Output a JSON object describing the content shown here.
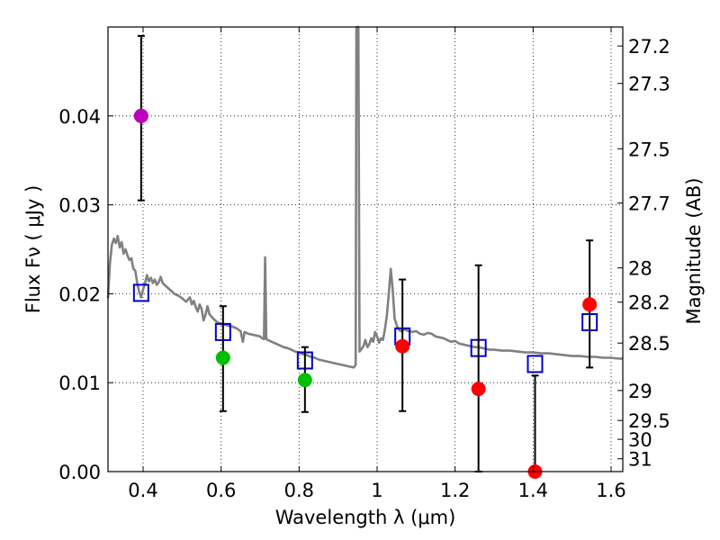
{
  "chart_data": {
    "type": "scatter",
    "xlabel": "Wavelength  λ (μm)",
    "ylabel": "Flux  Fν  ( μJy )",
    "y2label": "Magnitude (AB)",
    "xlim": [
      0.31,
      1.63
    ],
    "ylim": [
      0.0,
      0.05
    ],
    "grid": true,
    "x_ticks": [
      0.4,
      0.6,
      0.8,
      1.0,
      1.2,
      1.4,
      1.6
    ],
    "x_tick_labels": [
      "0.4",
      "0.6",
      "0.8",
      "1",
      "1.2",
      "1.4",
      "1.6"
    ],
    "y_ticks": [
      0.0,
      0.01,
      0.02,
      0.03,
      0.04
    ],
    "y_tick_labels": [
      "0.00",
      "0.01",
      "0.02",
      "0.03",
      "0.04"
    ],
    "magnitude_ticks": [
      "27.2",
      "27.3",
      "27.5",
      "27.7",
      "28",
      "28.2",
      "28.5",
      "29",
      "29.5",
      "30",
      "31"
    ],
    "observed": [
      {
        "x": 0.395,
        "y": 0.04,
        "err_low": 0.0305,
        "err_high": 0.049,
        "color": "#bf00bf"
      },
      {
        "x": 0.605,
        "y": 0.0128,
        "err_low": 0.0068,
        "err_high": 0.0186,
        "color": "#00bf00"
      },
      {
        "x": 0.815,
        "y": 0.0103,
        "err_low": 0.0067,
        "err_high": 0.014,
        "color": "#00bf00"
      },
      {
        "x": 1.065,
        "y": 0.0141,
        "err_low": 0.0068,
        "err_high": 0.0216,
        "color": "#ff0000"
      },
      {
        "x": 1.26,
        "y": 0.0093,
        "err_low": 0.0,
        "err_high": 0.0232,
        "color": "#ff0000"
      },
      {
        "x": 1.405,
        "y": 0.0,
        "err_low": 0.0,
        "err_high": 0.0108,
        "color": "#ff0000"
      },
      {
        "x": 1.545,
        "y": 0.0188,
        "err_low": 0.0117,
        "err_high": 0.026,
        "color": "#ff0000"
      }
    ],
    "model_bands": [
      {
        "x": 0.395,
        "y": 0.0201
      },
      {
        "x": 0.605,
        "y": 0.0157
      },
      {
        "x": 0.815,
        "y": 0.0125
      },
      {
        "x": 1.065,
        "y": 0.0152
      },
      {
        "x": 1.26,
        "y": 0.0139
      },
      {
        "x": 1.405,
        "y": 0.0121
      },
      {
        "x": 1.545,
        "y": 0.0168
      }
    ],
    "model_sed": [
      [
        0.31,
        0.0195
      ],
      [
        0.315,
        0.0235
      ],
      [
        0.32,
        0.0255
      ],
      [
        0.325,
        0.0262
      ],
      [
        0.33,
        0.0257
      ],
      [
        0.335,
        0.0265
      ],
      [
        0.34,
        0.0252
      ],
      [
        0.345,
        0.0258
      ],
      [
        0.35,
        0.0245
      ],
      [
        0.355,
        0.025
      ],
      [
        0.36,
        0.0243
      ],
      [
        0.365,
        0.0238
      ],
      [
        0.37,
        0.024
      ],
      [
        0.375,
        0.0228
      ],
      [
        0.38,
        0.0226
      ],
      [
        0.385,
        0.0212
      ],
      [
        0.39,
        0.0202
      ],
      [
        0.395,
        0.0196
      ],
      [
        0.4,
        0.0205
      ],
      [
        0.405,
        0.0212
      ],
      [
        0.41,
        0.0221
      ],
      [
        0.415,
        0.0214
      ],
      [
        0.42,
        0.0218
      ],
      [
        0.425,
        0.0212
      ],
      [
        0.43,
        0.0216
      ],
      [
        0.435,
        0.021
      ],
      [
        0.44,
        0.0213
      ],
      [
        0.445,
        0.0219
      ],
      [
        0.45,
        0.0212
      ],
      [
        0.46,
        0.0208
      ],
      [
        0.47,
        0.0204
      ],
      [
        0.48,
        0.02
      ],
      [
        0.49,
        0.0198
      ],
      [
        0.5,
        0.0195
      ],
      [
        0.51,
        0.0191
      ],
      [
        0.52,
        0.0196
      ],
      [
        0.525,
        0.0188
      ],
      [
        0.53,
        0.0192
      ],
      [
        0.535,
        0.0185
      ],
      [
        0.54,
        0.018
      ],
      [
        0.545,
        0.0188
      ],
      [
        0.55,
        0.0183
      ],
      [
        0.555,
        0.017
      ],
      [
        0.56,
        0.0176
      ],
      [
        0.565,
        0.0186
      ],
      [
        0.57,
        0.0177
      ],
      [
        0.58,
        0.0172
      ],
      [
        0.59,
        0.0168
      ],
      [
        0.6,
        0.0166
      ],
      [
        0.61,
        0.0165
      ],
      [
        0.62,
        0.0164
      ],
      [
        0.63,
        0.0163
      ],
      [
        0.64,
        0.0161
      ],
      [
        0.65,
        0.0158
      ],
      [
        0.656,
        0.0146
      ],
      [
        0.66,
        0.0157
      ],
      [
        0.67,
        0.0155
      ],
      [
        0.68,
        0.0154
      ],
      [
        0.69,
        0.0153
      ],
      [
        0.7,
        0.0152
      ],
      [
        0.705,
        0.015
      ],
      [
        0.71,
        0.0149
      ],
      [
        0.713,
        0.0241
      ],
      [
        0.716,
        0.0149
      ],
      [
        0.72,
        0.0148
      ],
      [
        0.73,
        0.0146
      ],
      [
        0.74,
        0.0144
      ],
      [
        0.75,
        0.0142
      ],
      [
        0.76,
        0.014
      ],
      [
        0.77,
        0.0139
      ],
      [
        0.78,
        0.0137
      ],
      [
        0.79,
        0.0135
      ],
      [
        0.8,
        0.0134
      ],
      [
        0.81,
        0.0132
      ],
      [
        0.82,
        0.0131
      ],
      [
        0.83,
        0.0129
      ],
      [
        0.84,
        0.0128
      ],
      [
        0.85,
        0.0126
      ],
      [
        0.86,
        0.0125
      ],
      [
        0.87,
        0.0124
      ],
      [
        0.88,
        0.0123
      ],
      [
        0.89,
        0.0122
      ],
      [
        0.9,
        0.0121
      ],
      [
        0.91,
        0.012
      ],
      [
        0.92,
        0.0119
      ],
      [
        0.93,
        0.0118
      ],
      [
        0.94,
        0.0117
      ],
      [
        0.945,
        0.012
      ],
      [
        0.947,
        0.05
      ],
      [
        0.952,
        0.05
      ],
      [
        0.955,
        0.0135
      ],
      [
        0.96,
        0.0138
      ],
      [
        0.965,
        0.0141
      ],
      [
        0.97,
        0.0148
      ],
      [
        0.975,
        0.014
      ],
      [
        0.98,
        0.0143
      ],
      [
        0.985,
        0.015
      ],
      [
        0.99,
        0.0146
      ],
      [
        0.995,
        0.0157
      ],
      [
        1.0,
        0.0152
      ],
      [
        1.005,
        0.0145
      ],
      [
        1.01,
        0.015
      ],
      [
        1.015,
        0.0148
      ],
      [
        1.02,
        0.016
      ],
      [
        1.025,
        0.0175
      ],
      [
        1.03,
        0.02
      ],
      [
        1.035,
        0.0228
      ],
      [
        1.04,
        0.0205
      ],
      [
        1.045,
        0.0172
      ],
      [
        1.05,
        0.0165
      ],
      [
        1.055,
        0.016
      ],
      [
        1.06,
        0.0158
      ],
      [
        1.07,
        0.016
      ],
      [
        1.08,
        0.0158
      ],
      [
        1.09,
        0.0157
      ],
      [
        1.1,
        0.0158
      ],
      [
        1.11,
        0.0155
      ],
      [
        1.12,
        0.0154
      ],
      [
        1.13,
        0.0156
      ],
      [
        1.14,
        0.0155
      ],
      [
        1.15,
        0.0152
      ],
      [
        1.16,
        0.0151
      ],
      [
        1.17,
        0.015
      ],
      [
        1.18,
        0.0148
      ],
      [
        1.19,
        0.0146
      ],
      [
        1.2,
        0.0147
      ],
      [
        1.21,
        0.0144
      ],
      [
        1.22,
        0.0143
      ],
      [
        1.23,
        0.0142
      ],
      [
        1.24,
        0.0141
      ],
      [
        1.25,
        0.014
      ],
      [
        1.26,
        0.014
      ],
      [
        1.27,
        0.0139
      ],
      [
        1.28,
        0.0138
      ],
      [
        1.29,
        0.0137
      ],
      [
        1.3,
        0.0137
      ],
      [
        1.32,
        0.0136
      ],
      [
        1.34,
        0.0136
      ],
      [
        1.36,
        0.0135
      ],
      [
        1.38,
        0.0134
      ],
      [
        1.4,
        0.0134
      ],
      [
        1.42,
        0.0133
      ],
      [
        1.44,
        0.0133
      ],
      [
        1.46,
        0.0132
      ],
      [
        1.48,
        0.0131
      ],
      [
        1.5,
        0.013
      ],
      [
        1.52,
        0.013
      ],
      [
        1.54,
        0.0129
      ],
      [
        1.56,
        0.0129
      ],
      [
        1.58,
        0.0128
      ],
      [
        1.6,
        0.0128
      ],
      [
        1.62,
        0.0127
      ],
      [
        1.63,
        0.0127
      ]
    ],
    "colors": {
      "model_line": "#808080",
      "model_band_marker": "#0000cc",
      "errorbar": "#000000",
      "grid": "#000000"
    }
  }
}
